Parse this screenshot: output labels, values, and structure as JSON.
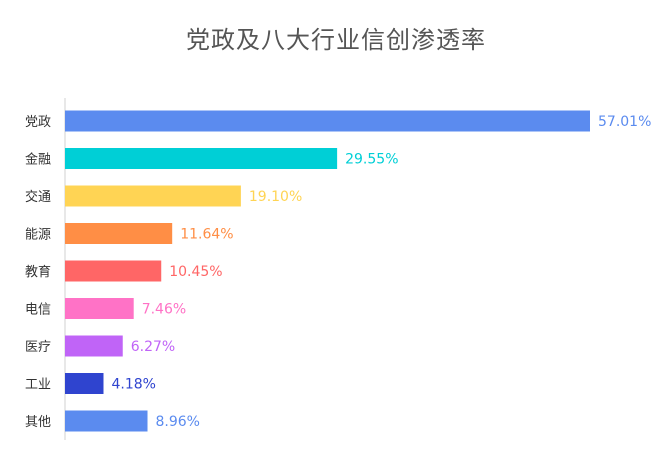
{
  "chart_data": {
    "type": "bar",
    "orientation": "horizontal",
    "title": "党政及八大行业信创渗透率",
    "xlabel": "",
    "ylabel": "",
    "xlim": [
      0,
      57.01
    ],
    "grid": false,
    "categories": [
      "党政",
      "金融",
      "交通",
      "能源",
      "教育",
      "电信",
      "医疗",
      "工业",
      "其他"
    ],
    "values": [
      57.01,
      29.55,
      19.1,
      11.64,
      10.45,
      7.46,
      6.27,
      4.18,
      8.96
    ],
    "value_labels": [
      "57.01%",
      "29.55%",
      "19.10%",
      "11.64%",
      "10.45%",
      "7.46%",
      "6.27%",
      "4.18%",
      "8.96%"
    ],
    "colors": [
      "#5B8BEF",
      "#00CFD6",
      "#FFD454",
      "#FF8E45",
      "#FF6666",
      "#FF72C6",
      "#C064F7",
      "#2F44CF",
      "#5B8BEF"
    ]
  }
}
